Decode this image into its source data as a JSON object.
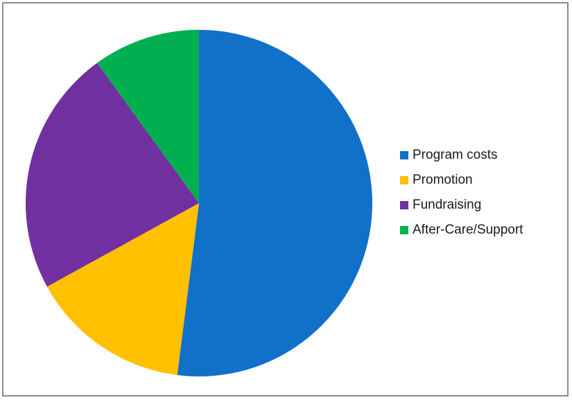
{
  "chart_data": {
    "type": "pie",
    "title": "",
    "categories": [
      "Program costs",
      "Promotion",
      "Fundraising",
      "After-Care/Support"
    ],
    "values": [
      52,
      15,
      23,
      10
    ],
    "colors": [
      "#1170C8",
      "#FFC000",
      "#7030A0",
      "#00B050"
    ],
    "start_angle_deg": 0,
    "direction": "clockwise",
    "legend_position": "right",
    "legend": [
      {
        "label": "Program costs",
        "color": "#1170C8"
      },
      {
        "label": "Promotion",
        "color": "#FFC000"
      },
      {
        "label": "Fundraising",
        "color": "#7030A0"
      },
      {
        "label": "After-Care/Support",
        "color": "#00B050"
      }
    ]
  }
}
